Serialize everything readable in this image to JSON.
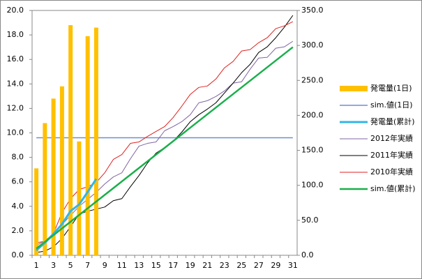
{
  "chart_data": {
    "type": "combo",
    "categories": [
      "1",
      null,
      "3",
      null,
      "5",
      null,
      "7",
      null,
      "9",
      null,
      "11",
      null,
      "13",
      null,
      "15",
      null,
      "17",
      null,
      "19",
      null,
      "21",
      null,
      "23",
      null,
      "25",
      null,
      "27",
      null,
      "29",
      null,
      "31"
    ],
    "ylim": [
      0,
      20
    ],
    "yticks": [
      {
        "value": 0,
        "label": "0.0"
      },
      {
        "value": 2,
        "label": "2.0"
      },
      {
        "value": 4,
        "label": "4.0"
      },
      {
        "value": 6,
        "label": "6.0"
      },
      {
        "value": 8,
        "label": "8.0"
      },
      {
        "value": 10,
        "label": "10.0"
      },
      {
        "value": 12,
        "label": "12.0"
      },
      {
        "value": 14,
        "label": "14.0"
      },
      {
        "value": 16,
        "label": "16.0"
      },
      {
        "value": 18,
        "label": "18.0"
      },
      {
        "value": 20,
        "label": "20.0"
      }
    ],
    "y2lim": [
      0,
      350
    ],
    "y2ticks": [
      {
        "value": 0,
        "label": "0.0"
      },
      {
        "value": 50,
        "label": "50.0"
      },
      {
        "value": 100,
        "label": "100.0"
      },
      {
        "value": 150,
        "label": "150.0"
      },
      {
        "value": 200,
        "label": "200.0"
      },
      {
        "value": 250,
        "label": "250.0"
      },
      {
        "value": 300,
        "label": "300.0"
      },
      {
        "value": 350,
        "label": "350.0"
      }
    ],
    "series": [
      {
        "name": "発電量(1日)",
        "kind": "bar",
        "color": "#ffc000",
        "values": [
          7.1,
          10.8,
          12.8,
          13.8,
          18.8,
          9.3,
          17.9,
          18.6,
          null,
          null,
          null,
          null,
          null,
          null,
          null,
          null,
          null,
          null,
          null,
          null,
          null,
          null,
          null,
          null,
          null,
          null,
          null,
          null,
          null,
          null,
          null
        ]
      },
      {
        "name": "sim.値(1日)",
        "kind": "line",
        "width": 1.5,
        "color": "#6f8fd0",
        "values": [
          9.6,
          9.6,
          9.6,
          9.6,
          9.6,
          9.6,
          9.6,
          9.6,
          9.6,
          9.6,
          9.6,
          9.6,
          9.6,
          9.6,
          9.6,
          9.6,
          9.6,
          9.6,
          9.6,
          9.6,
          9.6,
          9.6,
          9.6,
          9.6,
          9.6,
          9.6,
          9.6,
          9.6,
          9.6,
          9.6,
          9.6
        ]
      },
      {
        "name": "発電量(累計)",
        "kind": "line",
        "axis": "y2",
        "width": 3,
        "color": "#33b5e5",
        "values": [
          7.1,
          17.9,
          30.7,
          44.5,
          63.3,
          72.6,
          90.5,
          109.1,
          null,
          null,
          null,
          null,
          null,
          null,
          null,
          null,
          null,
          null,
          null,
          null,
          null,
          null,
          null,
          null,
          null,
          null,
          null,
          null,
          null,
          null,
          null
        ]
      },
      {
        "name": "2012年実績",
        "kind": "line",
        "axis": "y2",
        "width": 1,
        "color": "#8064a2",
        "values": [
          14,
          21,
          30,
          44,
          57,
          70,
          80,
          90,
          102,
          112,
          118,
          138,
          156,
          160,
          162,
          178,
          184,
          191,
          201,
          218,
          221,
          227,
          235,
          246,
          248,
          266,
          282,
          283,
          296,
          298,
          306
        ]
      },
      {
        "name": "2011年実績",
        "kind": "line",
        "axis": "y2",
        "width": 1,
        "color": "#000000",
        "values": [
          4,
          6,
          12,
          24,
          41,
          59,
          63,
          66,
          69,
          78,
          81,
          98,
          114,
          132,
          146,
          154,
          163,
          176,
          191,
          201,
          209,
          218,
          232,
          246,
          261,
          273,
          290,
          298,
          311,
          326,
          343
        ]
      },
      {
        "name": "2010年実績",
        "kind": "line",
        "axis": "y2",
        "width": 1,
        "color": "#e02020",
        "values": [
          18,
          20,
          31,
          61,
          81,
          94,
          98,
          104,
          118,
          137,
          144,
          160,
          162,
          170,
          177,
          184,
          197,
          213,
          230,
          240,
          242,
          252,
          268,
          277,
          292,
          294,
          304,
          311,
          324,
          328,
          334
        ]
      },
      {
        "name": "sim.値(累計)",
        "kind": "line",
        "axis": "y2",
        "width": 2.5,
        "color": "#1aaf4b",
        "values": [
          9.6,
          19.2,
          28.8,
          38.4,
          48,
          57.6,
          67.2,
          76.8,
          86.4,
          96,
          105.6,
          115.2,
          124.8,
          134.4,
          144,
          153.6,
          163.2,
          172.8,
          182.4,
          192,
          201.6,
          211.2,
          220.8,
          230.4,
          240,
          249.6,
          259.2,
          268.8,
          278.4,
          288,
          297.6
        ]
      }
    ]
  }
}
